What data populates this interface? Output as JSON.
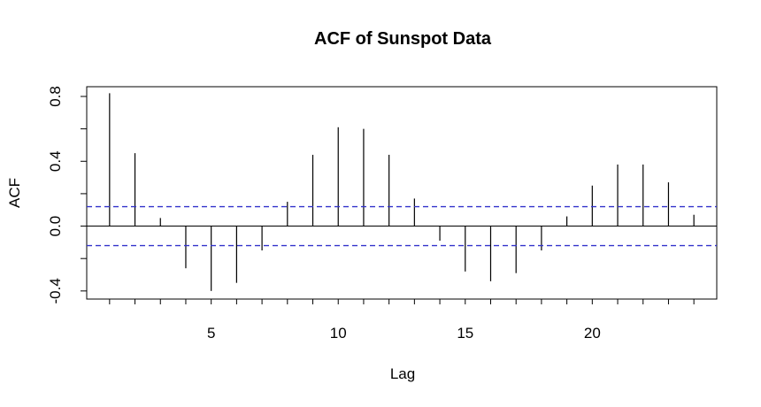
{
  "chart_data": {
    "type": "bar",
    "title": "ACF of Sunspot Data",
    "xlabel": "Lag",
    "ylabel": "ACF",
    "xlim": [
      0.1,
      24.9
    ],
    "ylim": [
      -0.45,
      0.86
    ],
    "x_ticks": [
      5,
      10,
      15,
      20
    ],
    "x_tick_labels": [
      "5",
      "10",
      "15",
      "20"
    ],
    "y_ticks": [
      -0.4,
      0.0,
      0.4,
      0.8
    ],
    "y_tick_labels": [
      "-0.4",
      "0.0",
      "0.4",
      "0.8"
    ],
    "confidence_bound": 0.12,
    "colors": {
      "bound_line": "#3333cc",
      "spike": "#000000",
      "zero_line": "#000000"
    },
    "series": [
      {
        "x": [
          1,
          2,
          3,
          4,
          5,
          6,
          7,
          8,
          9,
          10,
          11,
          12,
          13,
          14,
          15,
          16,
          17,
          18,
          19,
          20,
          21,
          22,
          23,
          24
        ],
        "values": [
          0.82,
          0.45,
          0.05,
          -0.26,
          -0.4,
          -0.35,
          -0.15,
          0.15,
          0.44,
          0.61,
          0.6,
          0.44,
          0.17,
          -0.09,
          -0.28,
          -0.34,
          -0.29,
          -0.15,
          0.06,
          0.25,
          0.38,
          0.38,
          0.27,
          0.07
        ]
      }
    ]
  }
}
